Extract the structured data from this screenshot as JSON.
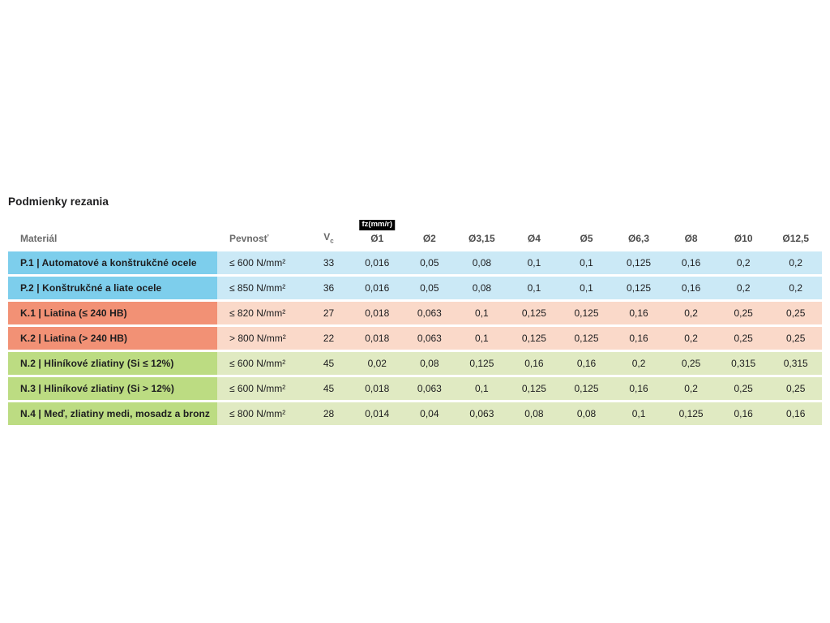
{
  "page": {
    "title": "Podmienky rezania",
    "background": "#ffffff"
  },
  "table": {
    "header": {
      "material": "Materiál",
      "strength": "Pevnosť",
      "vc_base": "V",
      "vc_sub": "c",
      "fz_badge": "fz(mm/r)",
      "diameters": [
        "Ø1",
        "Ø2",
        "Ø3,15",
        "Ø4",
        "Ø5",
        "Ø6,3",
        "Ø8",
        "Ø10",
        "Ø12,5"
      ]
    },
    "colors": {
      "P": {
        "label": "#7dceec",
        "row": "#cbe9f6"
      },
      "K": {
        "label": "#f29175",
        "row": "#fad9c9"
      },
      "N": {
        "label": "#bcdc82",
        "row": "#e0eac2"
      },
      "badge_bg": "#000000",
      "badge_text": "#ffffff",
      "header_text": "#6a6a6a",
      "cell_text": "#1d1d1f"
    },
    "rows": [
      {
        "group": "P",
        "material": "P.1 | Automatové a konštrukčné ocele",
        "strength": "≤ 600 N/mm²",
        "vc": "33",
        "values": [
          "0,016",
          "0,05",
          "0,08",
          "0,1",
          "0,1",
          "0,125",
          "0,16",
          "0,2",
          "0,2"
        ]
      },
      {
        "group": "P",
        "material": "P.2 | Konštrukčné a liate ocele",
        "strength": "≤ 850 N/mm²",
        "vc": "36",
        "values": [
          "0,016",
          "0,05",
          "0,08",
          "0,1",
          "0,1",
          "0,125",
          "0,16",
          "0,2",
          "0,2"
        ]
      },
      {
        "group": "K",
        "material": "K.1 | Liatina (≤ 240 HB)",
        "strength": "≤ 820 N/mm²",
        "vc": "27",
        "values": [
          "0,018",
          "0,063",
          "0,1",
          "0,125",
          "0,125",
          "0,16",
          "0,2",
          "0,25",
          "0,25"
        ]
      },
      {
        "group": "K",
        "material": "K.2 | Liatina (> 240 HB)",
        "strength": "> 800 N/mm²",
        "vc": "22",
        "values": [
          "0,018",
          "0,063",
          "0,1",
          "0,125",
          "0,125",
          "0,16",
          "0,2",
          "0,25",
          "0,25"
        ]
      },
      {
        "group": "N",
        "material": "N.2 | Hliníkové zliatiny (Si ≤ 12%)",
        "strength": "≤ 600 N/mm²",
        "vc": "45",
        "values": [
          "0,02",
          "0,08",
          "0,125",
          "0,16",
          "0,16",
          "0,2",
          "0,25",
          "0,315",
          "0,315"
        ]
      },
      {
        "group": "N",
        "material": "N.3 | Hliníkové zliatiny (Si > 12%)",
        "strength": "≤ 600 N/mm²",
        "vc": "45",
        "values": [
          "0,018",
          "0,063",
          "0,1",
          "0,125",
          "0,125",
          "0,16",
          "0,2",
          "0,25",
          "0,25"
        ]
      },
      {
        "group": "N",
        "material": "N.4 | Meď, zliatiny medi, mosadz a bronz",
        "strength": "≤ 800 N/mm²",
        "vc": "28",
        "values": [
          "0,014",
          "0,04",
          "0,063",
          "0,08",
          "0,08",
          "0,1",
          "0,125",
          "0,16",
          "0,16"
        ]
      }
    ]
  }
}
